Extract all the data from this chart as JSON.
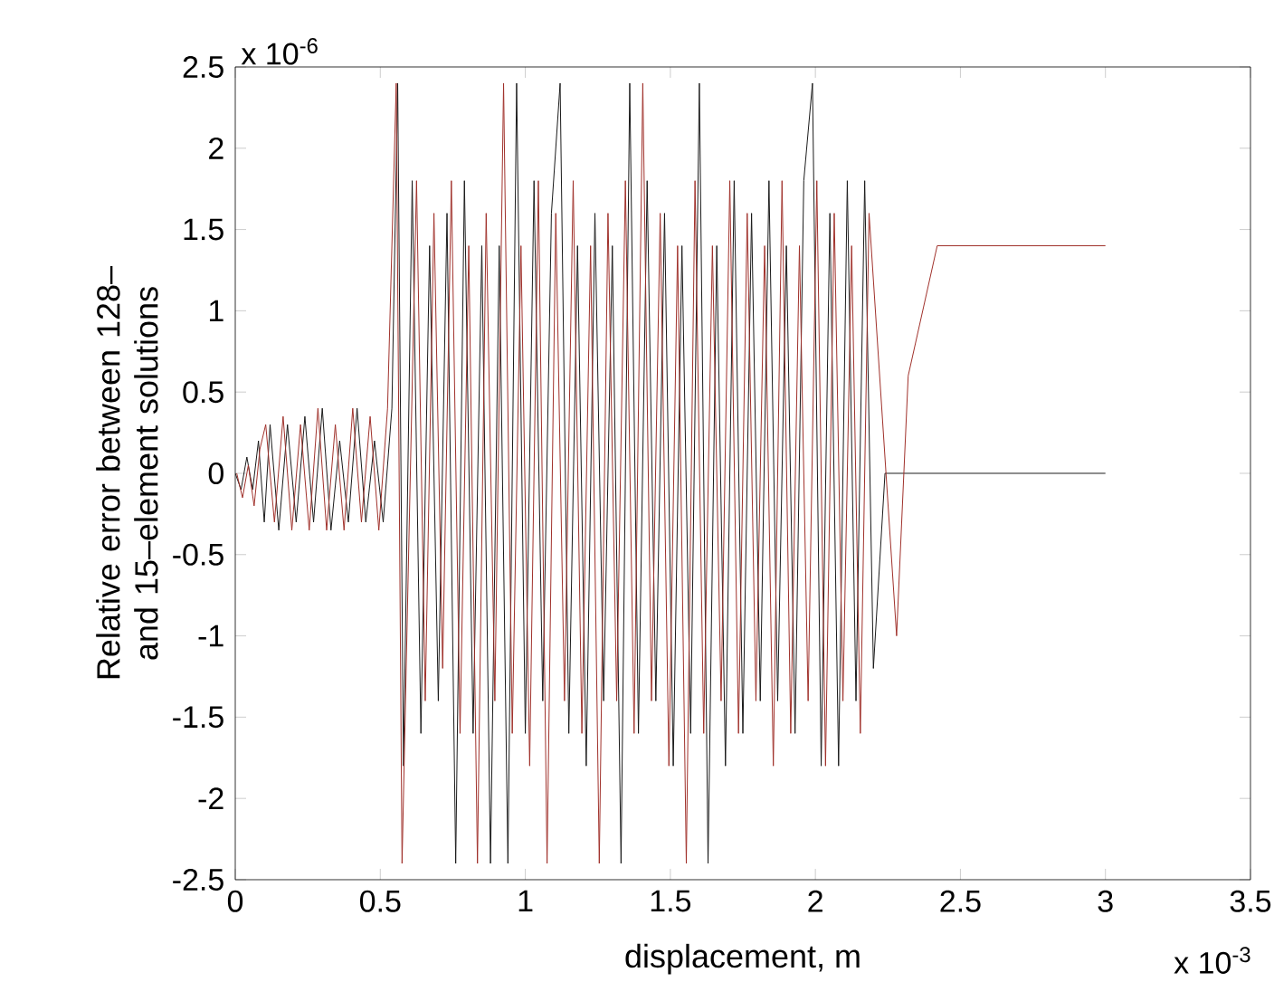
{
  "chart_data": {
    "type": "line",
    "xlabel": "displacement, m",
    "ylabel": "Relative error between 128– and 15–element solutions",
    "annotations": [
      "x 10$^{-6}$",
      "x 10$^{-3}$"
    ],
    "xlim": [
      0,
      3.5
    ],
    "ylim": [
      -2.5,
      2.5
    ],
    "xticks": [
      0,
      0.5,
      1,
      1.5,
      2,
      2.5,
      3,
      3.5
    ],
    "yticks": [
      -2.5,
      -2,
      -1.5,
      -1,
      -0.5,
      0,
      0.5,
      1,
      1.5,
      2,
      2.5
    ],
    "grid": false,
    "marker": "none",
    "line_style": "solid",
    "series": [
      {
        "color": "#1a1a1a",
        "x": [
          0,
          0.02,
          0.04,
          0.06,
          0.08,
          0.1,
          0.12,
          0.15,
          0.18,
          0.21,
          0.24,
          0.27,
          0.3,
          0.33,
          0.36,
          0.39,
          0.42,
          0.45,
          0.48,
          0.51,
          0.54,
          0.56,
          0.58,
          0.61,
          0.64,
          0.67,
          0.7,
          0.73,
          0.76,
          0.79,
          0.82,
          0.85,
          0.88,
          0.91,
          0.94,
          0.97,
          1,
          1.03,
          1.06,
          1.09,
          1.12,
          1.15,
          1.18,
          1.21,
          1.24,
          1.27,
          1.3,
          1.33,
          1.36,
          1.39,
          1.42,
          1.45,
          1.48,
          1.51,
          1.54,
          1.57,
          1.6,
          1.63,
          1.66,
          1.69,
          1.72,
          1.75,
          1.78,
          1.81,
          1.84,
          1.87,
          1.9,
          1.93,
          1.96,
          1.99,
          2.02,
          2.05,
          2.08,
          2.11,
          2.14,
          2.17,
          2.2,
          2.24,
          3
        ],
        "values": [
          0,
          -0.1,
          0.1,
          -0.1,
          0.2,
          -0.3,
          0.3,
          -0.35,
          0.3,
          -0.3,
          0.35,
          -0.3,
          0.4,
          -0.35,
          0.2,
          -0.3,
          0.4,
          -0.3,
          0.2,
          -0.3,
          0.4,
          2.4,
          -1.8,
          1.8,
          -1.6,
          1.4,
          -1.4,
          1.6,
          -2.4,
          1.8,
          -1.6,
          1.4,
          -2.4,
          1.4,
          -2.4,
          2.4,
          -1.6,
          1.8,
          -1.4,
          1.6,
          2.4,
          -1.6,
          1.4,
          -1.8,
          1.6,
          -1.4,
          1.4,
          -2.4,
          2.4,
          -1.6,
          1.8,
          -1.4,
          1.6,
          -1.8,
          1.4,
          -1.6,
          2.4,
          -2.4,
          1.4,
          -1.8,
          1.8,
          -1.6,
          1.6,
          -1.4,
          1.8,
          -1.4,
          1.4,
          -1.6,
          1.8,
          2.4,
          -1.8,
          1.6,
          -1.8,
          1.8,
          -1.4,
          1.8,
          -1.2,
          0,
          0
        ]
      },
      {
        "color": "#a0302a",
        "x": [
          0.005,
          0.025,
          0.045,
          0.065,
          0.085,
          0.105,
          0.135,
          0.165,
          0.195,
          0.225,
          0.255,
          0.285,
          0.315,
          0.345,
          0.375,
          0.405,
          0.435,
          0.465,
          0.495,
          0.525,
          0.555,
          0.575,
          0.625,
          0.655,
          0.685,
          0.715,
          0.745,
          0.775,
          0.805,
          0.835,
          0.865,
          0.895,
          0.925,
          0.955,
          0.985,
          1.015,
          1.045,
          1.075,
          1.105,
          1.135,
          1.165,
          1.195,
          1.225,
          1.255,
          1.285,
          1.315,
          1.345,
          1.375,
          1.405,
          1.435,
          1.465,
          1.495,
          1.525,
          1.555,
          1.585,
          1.615,
          1.645,
          1.675,
          1.705,
          1.735,
          1.765,
          1.795,
          1.825,
          1.855,
          1.885,
          1.915,
          1.945,
          1.975,
          2.005,
          2.035,
          2.065,
          2.095,
          2.125,
          2.155,
          2.185,
          2.28,
          2.32,
          2.42,
          3
        ],
        "values": [
          0,
          -0.15,
          0.05,
          -0.2,
          0.15,
          0.3,
          -0.3,
          0.35,
          -0.35,
          0.3,
          -0.35,
          0.4,
          -0.35,
          0.3,
          -0.35,
          0.4,
          -0.3,
          0.35,
          -0.35,
          0.4,
          2.4,
          -2.4,
          1.8,
          -1.4,
          1.6,
          -1.2,
          1.8,
          -1.6,
          1.4,
          -2.4,
          1.6,
          -1.4,
          2.4,
          -1.6,
          1.4,
          -1.8,
          1.8,
          -2.4,
          1.6,
          -1.4,
          1.8,
          -1.6,
          1.4,
          -2.4,
          1.6,
          -1.4,
          1.8,
          -1.6,
          2.4,
          -1.4,
          1.6,
          -1.8,
          1.4,
          -2.4,
          1.8,
          -1.6,
          1.4,
          -1.4,
          1.8,
          -1.6,
          1.6,
          -1.4,
          1.4,
          -1.8,
          1.8,
          -1.6,
          1.4,
          -1.4,
          1.8,
          -1.8,
          1.6,
          -1.4,
          1.4,
          -1.6,
          1.6,
          -1,
          0.6,
          1.4,
          1.4
        ]
      }
    ]
  }
}
